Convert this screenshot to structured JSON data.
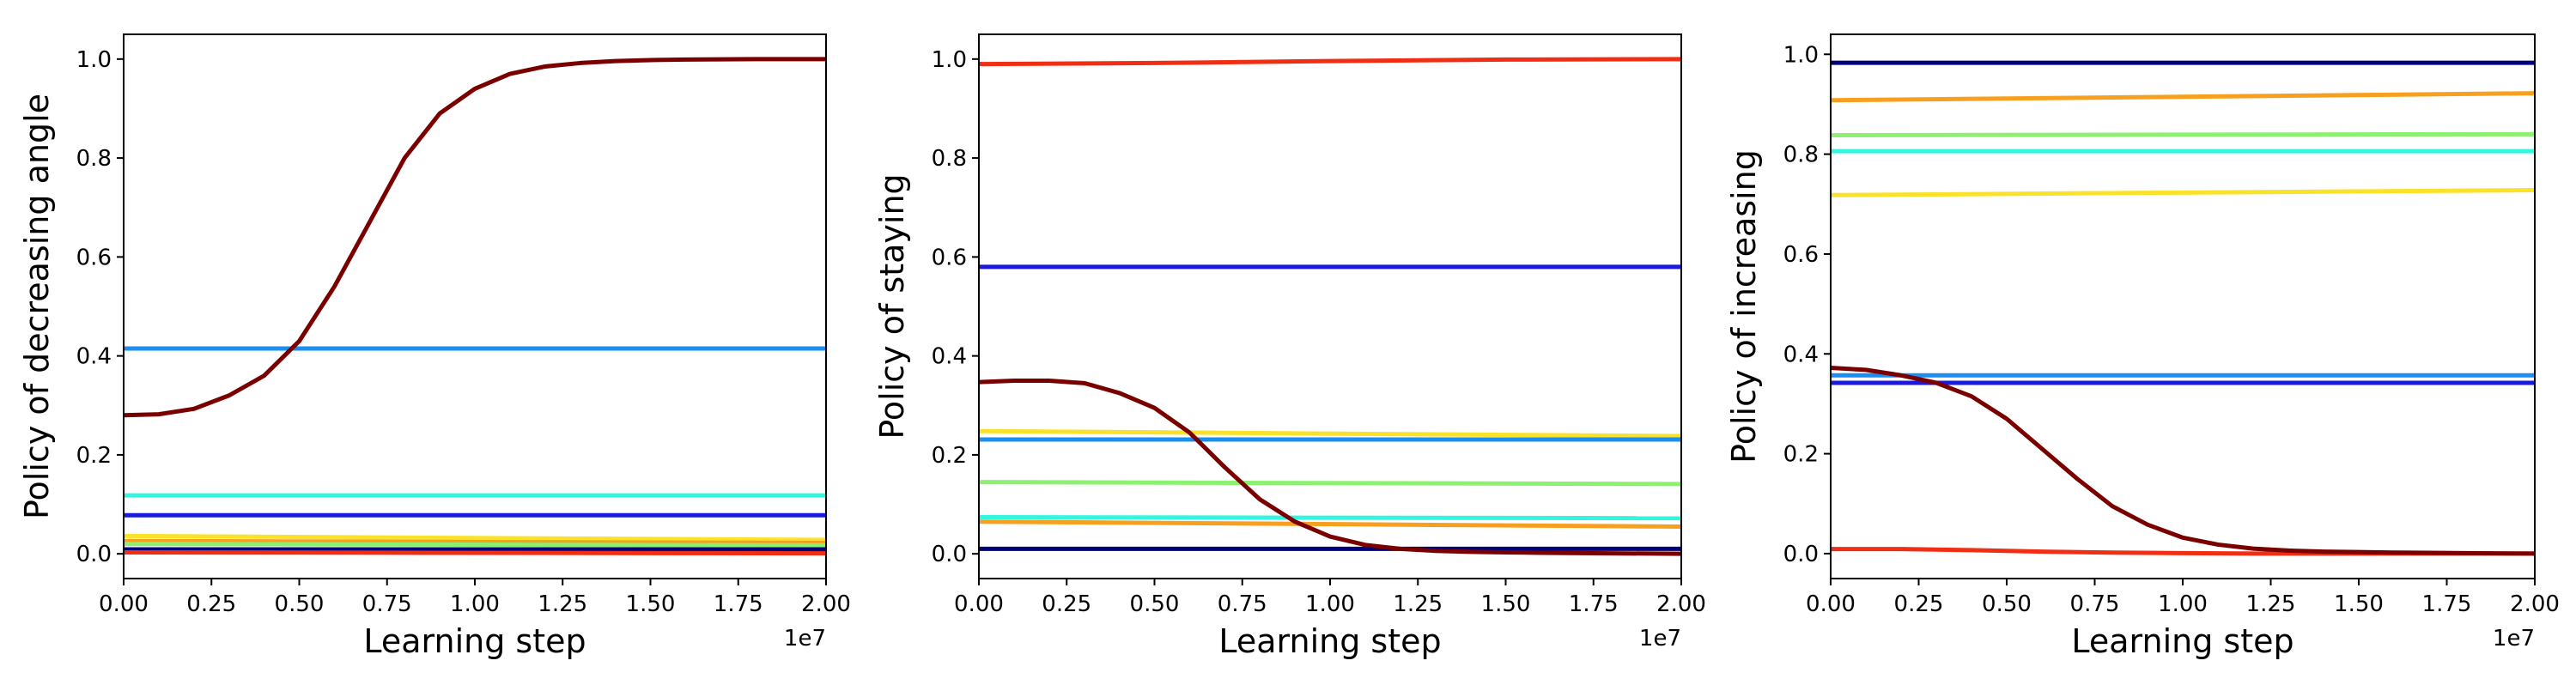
{
  "chart_data": [
    {
      "type": "line",
      "title": "",
      "xlabel": "Learning step",
      "ylabel": "Policy of decreasing angle",
      "x_offset_label": "1e7",
      "xlim": [
        0,
        2.0
      ],
      "ylim": [
        -0.05,
        1.05
      ],
      "xticks": [
        "0.00",
        "0.25",
        "0.50",
        "0.75",
        "1.00",
        "1.25",
        "1.50",
        "1.75",
        "2.00"
      ],
      "yticks": [
        "0.0",
        "0.2",
        "0.4",
        "0.6",
        "0.8",
        "1.0"
      ],
      "grid": false,
      "legend": "none",
      "series": [
        {
          "color": "#1b8ef2",
          "x": [
            0,
            2.0
          ],
          "y": [
            0.415,
            0.415
          ]
        },
        {
          "color": "#33f5e0",
          "x": [
            0,
            2.0
          ],
          "y": [
            0.118,
            0.118
          ]
        },
        {
          "color": "#1a1add",
          "x": [
            0,
            2.0
          ],
          "y": [
            0.078,
            0.078
          ]
        },
        {
          "color": "#fae22a",
          "x": [
            0,
            2.0
          ],
          "y": [
            0.036,
            0.028
          ]
        },
        {
          "color": "#f7a020",
          "x": [
            0,
            2.0
          ],
          "y": [
            0.026,
            0.022
          ]
        },
        {
          "color": "#8cf070",
          "x": [
            0,
            2.0
          ],
          "y": [
            0.02,
            0.017
          ]
        },
        {
          "color": "#00007a",
          "x": [
            0,
            2.0
          ],
          "y": [
            0.009,
            0.009
          ]
        },
        {
          "color": "#f02e14",
          "x": [
            0,
            2.0
          ],
          "y": [
            0.003,
            0.001
          ]
        },
        {
          "color": "#7a0000",
          "x": [
            0,
            0.1,
            0.2,
            0.3,
            0.4,
            0.5,
            0.6,
            0.7,
            0.8,
            0.9,
            1.0,
            1.1,
            1.2,
            1.3,
            1.4,
            1.5,
            1.6,
            1.8,
            2.0
          ],
          "y": [
            0.28,
            0.282,
            0.293,
            0.32,
            0.36,
            0.43,
            0.54,
            0.67,
            0.8,
            0.89,
            0.94,
            0.97,
            0.985,
            0.992,
            0.996,
            0.998,
            0.999,
            1.0,
            1.0
          ]
        }
      ]
    },
    {
      "type": "line",
      "title": "",
      "xlabel": "Learning step",
      "ylabel": "Policy of staying",
      "x_offset_label": "1e7",
      "xlim": [
        0,
        2.0
      ],
      "ylim": [
        -0.05,
        1.05
      ],
      "xticks": [
        "0.00",
        "0.25",
        "0.50",
        "0.75",
        "1.00",
        "1.25",
        "1.50",
        "1.75",
        "2.00"
      ],
      "yticks": [
        "0.0",
        "0.2",
        "0.4",
        "0.6",
        "0.8",
        "1.0"
      ],
      "grid": false,
      "legend": "none",
      "series": [
        {
          "color": "#f02e14",
          "x": [
            0,
            0.5,
            1.0,
            1.5,
            2.0
          ],
          "y": [
            0.99,
            0.992,
            0.996,
            0.999,
            1.0
          ]
        },
        {
          "color": "#1a1add",
          "x": [
            0,
            2.0
          ],
          "y": [
            0.58,
            0.58
          ]
        },
        {
          "color": "#fae22a",
          "x": [
            0,
            2.0
          ],
          "y": [
            0.248,
            0.238
          ]
        },
        {
          "color": "#1b8ef2",
          "x": [
            0,
            2.0
          ],
          "y": [
            0.231,
            0.231
          ]
        },
        {
          "color": "#8cf070",
          "x": [
            0,
            2.0
          ],
          "y": [
            0.145,
            0.141
          ]
        },
        {
          "color": "#33f5e0",
          "x": [
            0,
            2.0
          ],
          "y": [
            0.074,
            0.072
          ]
        },
        {
          "color": "#f7a020",
          "x": [
            0,
            2.0
          ],
          "y": [
            0.065,
            0.055
          ]
        },
        {
          "color": "#00007a",
          "x": [
            0,
            2.0
          ],
          "y": [
            0.01,
            0.01
          ]
        },
        {
          "color": "#7a0000",
          "x": [
            0,
            0.1,
            0.2,
            0.3,
            0.4,
            0.5,
            0.6,
            0.7,
            0.8,
            0.9,
            1.0,
            1.1,
            1.2,
            1.3,
            1.4,
            1.5,
            1.6,
            1.8,
            2.0
          ],
          "y": [
            0.347,
            0.35,
            0.35,
            0.345,
            0.325,
            0.295,
            0.245,
            0.175,
            0.11,
            0.065,
            0.035,
            0.018,
            0.01,
            0.006,
            0.004,
            0.003,
            0.002,
            0.001,
            0.0
          ]
        }
      ]
    },
    {
      "type": "line",
      "title": "",
      "xlabel": "Learning step",
      "ylabel": "Policy of increasing",
      "x_offset_label": "1e7",
      "xlim": [
        0,
        2.0
      ],
      "ylim": [
        -0.05,
        1.04
      ],
      "xticks": [
        "0.00",
        "0.25",
        "0.50",
        "0.75",
        "1.00",
        "1.25",
        "1.50",
        "1.75",
        "2.00"
      ],
      "yticks": [
        "0.0",
        "0.2",
        "0.4",
        "0.6",
        "0.8",
        "1.0"
      ],
      "grid": false,
      "legend": "none",
      "series": [
        {
          "color": "#00007a",
          "x": [
            0,
            2.0
          ],
          "y": [
            0.983,
            0.983
          ]
        },
        {
          "color": "#f7a020",
          "x": [
            0,
            2.0
          ],
          "y": [
            0.908,
            0.922
          ]
        },
        {
          "color": "#8cf070",
          "x": [
            0,
            2.0
          ],
          "y": [
            0.838,
            0.84
          ]
        },
        {
          "color": "#33f5e0",
          "x": [
            0,
            2.0
          ],
          "y": [
            0.806,
            0.806
          ]
        },
        {
          "color": "#fae22a",
          "x": [
            0,
            2.0
          ],
          "y": [
            0.718,
            0.728
          ]
        },
        {
          "color": "#1b8ef2",
          "x": [
            0,
            2.0
          ],
          "y": [
            0.357,
            0.357
          ]
        },
        {
          "color": "#1a1add",
          "x": [
            0,
            2.0
          ],
          "y": [
            0.342,
            0.342
          ]
        },
        {
          "color": "#f02e14",
          "x": [
            0,
            0.2,
            0.4,
            0.6,
            0.8,
            1.0,
            1.2,
            1.5,
            2.0
          ],
          "y": [
            0.009,
            0.009,
            0.007,
            0.004,
            0.002,
            0.001,
            0.0,
            0.0,
            0.0
          ]
        },
        {
          "color": "#7a0000",
          "x": [
            0,
            0.1,
            0.2,
            0.3,
            0.4,
            0.5,
            0.6,
            0.7,
            0.8,
            0.9,
            1.0,
            1.1,
            1.2,
            1.3,
            1.4,
            1.5,
            1.6,
            1.8,
            2.0
          ],
          "y": [
            0.372,
            0.368,
            0.357,
            0.342,
            0.315,
            0.27,
            0.21,
            0.15,
            0.095,
            0.058,
            0.032,
            0.018,
            0.01,
            0.006,
            0.004,
            0.003,
            0.002,
            0.001,
            0.0
          ]
        }
      ]
    }
  ]
}
